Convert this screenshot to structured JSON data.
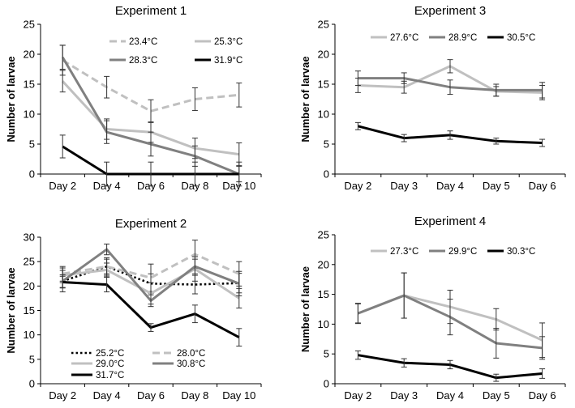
{
  "chart_data": [
    {
      "type": "line",
      "title": "Experiment 1",
      "ylabel": "Number of larvae",
      "xlabel": "",
      "categories": [
        "Day 2",
        "Day 4",
        "Day 6",
        "Day 8",
        "Day 10"
      ],
      "ylim": [
        0,
        25
      ],
      "yticks": [
        0,
        5,
        10,
        15,
        20,
        25
      ],
      "grid": false,
      "legend_placement": "top-right",
      "series": [
        {
          "name": "23.4°C",
          "color": "#c0c0c0",
          "dash": "dashed",
          "values": [
            19,
            14.5,
            10.5,
            12.5,
            13.2
          ],
          "errors": [
            2.5,
            1.8,
            1.9,
            1.9,
            2.0
          ]
        },
        {
          "name": "25.3°C",
          "color": "#c0c0c0",
          "dash": "solid",
          "values": [
            15.5,
            7.5,
            7,
            4.3,
            3.3
          ],
          "errors": [
            1.8,
            1.7,
            1.7,
            1.7,
            1.9
          ]
        },
        {
          "name": "28.3°C",
          "color": "#808080",
          "dash": "solid",
          "values": [
            19.5,
            7,
            5,
            3,
            0
          ],
          "errors": [
            2.0,
            1.9,
            2.0,
            1.7,
            1.3
          ]
        },
        {
          "name": "31.9°C",
          "color": "#000000",
          "dash": "solid",
          "values": [
            4.6,
            0,
            0,
            0,
            0
          ],
          "errors": [
            1.9,
            2.0,
            2.0,
            2.0,
            2.0
          ]
        }
      ]
    },
    {
      "type": "line",
      "title": "Experiment 3",
      "ylabel": "Number of larvae",
      "xlabel": "",
      "categories": [
        "Day 2",
        "Day 3",
        "Day 4",
        "Day 5",
        "Day 6"
      ],
      "ylim": [
        0,
        25
      ],
      "yticks": [
        0,
        5,
        10,
        15,
        20,
        25
      ],
      "grid": false,
      "legend_placement": "top",
      "series": [
        {
          "name": "27.6°C",
          "color": "#c0c0c0",
          "dash": "solid",
          "values": [
            14.8,
            14.5,
            18,
            13.8,
            13.6
          ],
          "errors": [
            1.2,
            1.0,
            1.1,
            0.8,
            1.2
          ]
        },
        {
          "name": "28.9°C",
          "color": "#808080",
          "dash": "solid",
          "values": [
            16,
            16,
            14.5,
            14,
            14
          ],
          "errors": [
            1.2,
            0.9,
            1.2,
            1.0,
            1.3
          ]
        },
        {
          "name": "30.5°C",
          "color": "#000000",
          "dash": "solid",
          "values": [
            8,
            6,
            6.5,
            5.5,
            5.2
          ],
          "errors": [
            0.6,
            0.6,
            0.7,
            0.5,
            0.6
          ]
        }
      ]
    },
    {
      "type": "line",
      "title": "Experiment 2",
      "ylabel": "Number of larvae",
      "xlabel": "",
      "categories": [
        "Day 2",
        "Day 4",
        "Day 6",
        "Day 8",
        "Day 10"
      ],
      "ylim": [
        0,
        30
      ],
      "yticks": [
        0,
        5,
        10,
        15,
        20,
        25,
        30
      ],
      "grid": false,
      "legend_placement": "bottom-left",
      "series": [
        {
          "name": "25.2°C",
          "color": "#000000",
          "dash": "dotted",
          "values": [
            21,
            24,
            20.5,
            20.3,
            20.6
          ],
          "errors": [
            2.2,
            1.8,
            2.0,
            1.9,
            2.0
          ]
        },
        {
          "name": "28.0°C",
          "color": "#c0c0c0",
          "dash": "dashed",
          "values": [
            22.5,
            24,
            21.7,
            26.5,
            22.5
          ],
          "errors": [
            1.5,
            1.5,
            2.8,
            2.9,
            2.5
          ]
        },
        {
          "name": "29.0°C",
          "color": "#c0c0c0",
          "dash": "solid",
          "values": [
            22.2,
            23.3,
            18.5,
            23.5,
            17.5
          ],
          "errors": [
            1.5,
            1.4,
            2.2,
            2.5,
            2.0
          ]
        },
        {
          "name": "30.8°C",
          "color": "#808080",
          "dash": "solid",
          "values": [
            21,
            27.5,
            17,
            24,
            20.5
          ],
          "errors": [
            1.3,
            1.1,
            1.2,
            1.5,
            2.5
          ]
        },
        {
          "name": "31.7°C",
          "color": "#000000",
          "dash": "solid",
          "values": [
            20.8,
            20.3,
            11.5,
            14.3,
            9.5
          ],
          "errors": [
            1.2,
            1.5,
            0.8,
            1.8,
            1.8
          ]
        }
      ]
    },
    {
      "type": "line",
      "title": "Experiment 4",
      "ylabel": "Number of larvae",
      "xlabel": "",
      "categories": [
        "Day 2",
        "Day 3",
        "Day 4",
        "Day 5",
        "Day 6"
      ],
      "ylim": [
        0,
        25
      ],
      "yticks": [
        0,
        5,
        10,
        15,
        20,
        25
      ],
      "grid": false,
      "legend_placement": "top",
      "series": [
        {
          "name": "27.3°C",
          "color": "#c0c0c0",
          "dash": "solid",
          "values": [
            11.8,
            14.8,
            12.9,
            10.8,
            7.3
          ],
          "errors": [
            1.6,
            3.8,
            2.8,
            1.8,
            2.9
          ]
        },
        {
          "name": "29.9°C",
          "color": "#808080",
          "dash": "solid",
          "values": [
            11.8,
            14.8,
            11.2,
            6.8,
            6
          ],
          "errors": [
            1.7,
            3.8,
            3.0,
            2.5,
            1.9
          ]
        },
        {
          "name": "30.3°C",
          "color": "#000000",
          "dash": "solid",
          "values": [
            4.8,
            3.5,
            3.2,
            1,
            1.7
          ],
          "errors": [
            0.7,
            0.7,
            0.7,
            0.6,
            0.8
          ]
        }
      ]
    }
  ]
}
